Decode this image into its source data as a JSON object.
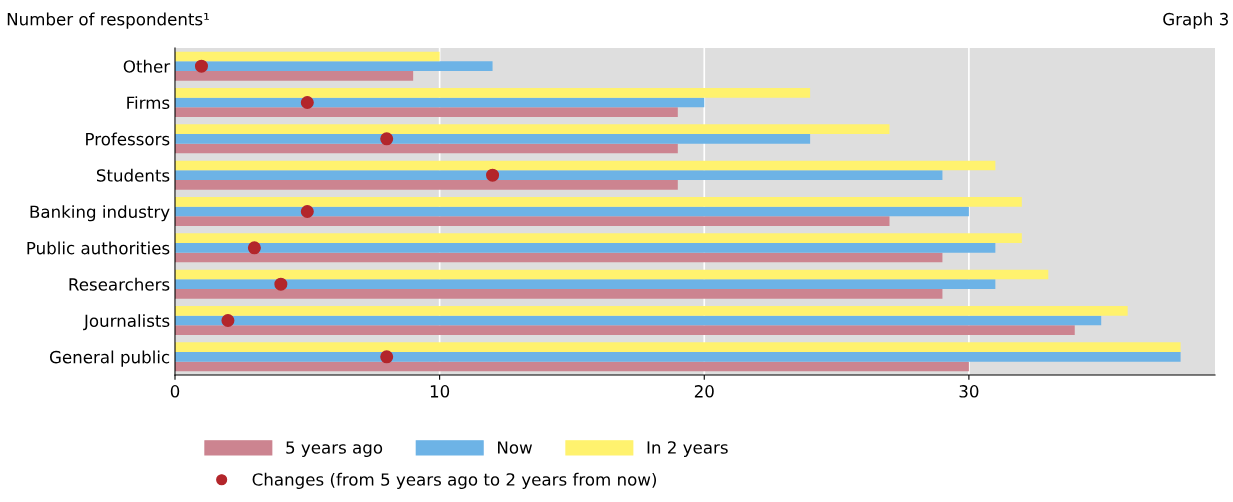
{
  "chart_data": {
    "type": "bar",
    "orientation": "horizontal",
    "title": "Number of respondents¹",
    "annotations": [
      "Graph 3"
    ],
    "categories": [
      "Other",
      "Firms",
      "Professors",
      "Students",
      "Banking industry",
      "Public authorities",
      "Researchers",
      "Journalists",
      "General public"
    ],
    "series": [
      {
        "name": "5 years ago",
        "color": "#cc8490",
        "values": [
          9,
          19,
          19,
          19,
          27,
          29,
          29,
          34,
          30
        ]
      },
      {
        "name": "Now",
        "color": "#6db3e6",
        "values": [
          12,
          20,
          24,
          29,
          30,
          31,
          31,
          35,
          38
        ]
      },
      {
        "name": "In 2 years",
        "color": "#fff26e",
        "values": [
          10,
          24,
          27,
          31,
          32,
          32,
          33,
          36,
          38
        ]
      },
      {
        "name": "Changes (from 5 years ago to 2 years from now)",
        "type": "scatter",
        "color": "#b3262b",
        "values": [
          1,
          5,
          8,
          12,
          5,
          3,
          4,
          2,
          8
        ]
      }
    ],
    "xlim": [
      0,
      39.3
    ],
    "xticks": [
      0,
      10,
      20,
      30
    ],
    "grid": "x",
    "legend": "bottom",
    "marker": "circle"
  }
}
